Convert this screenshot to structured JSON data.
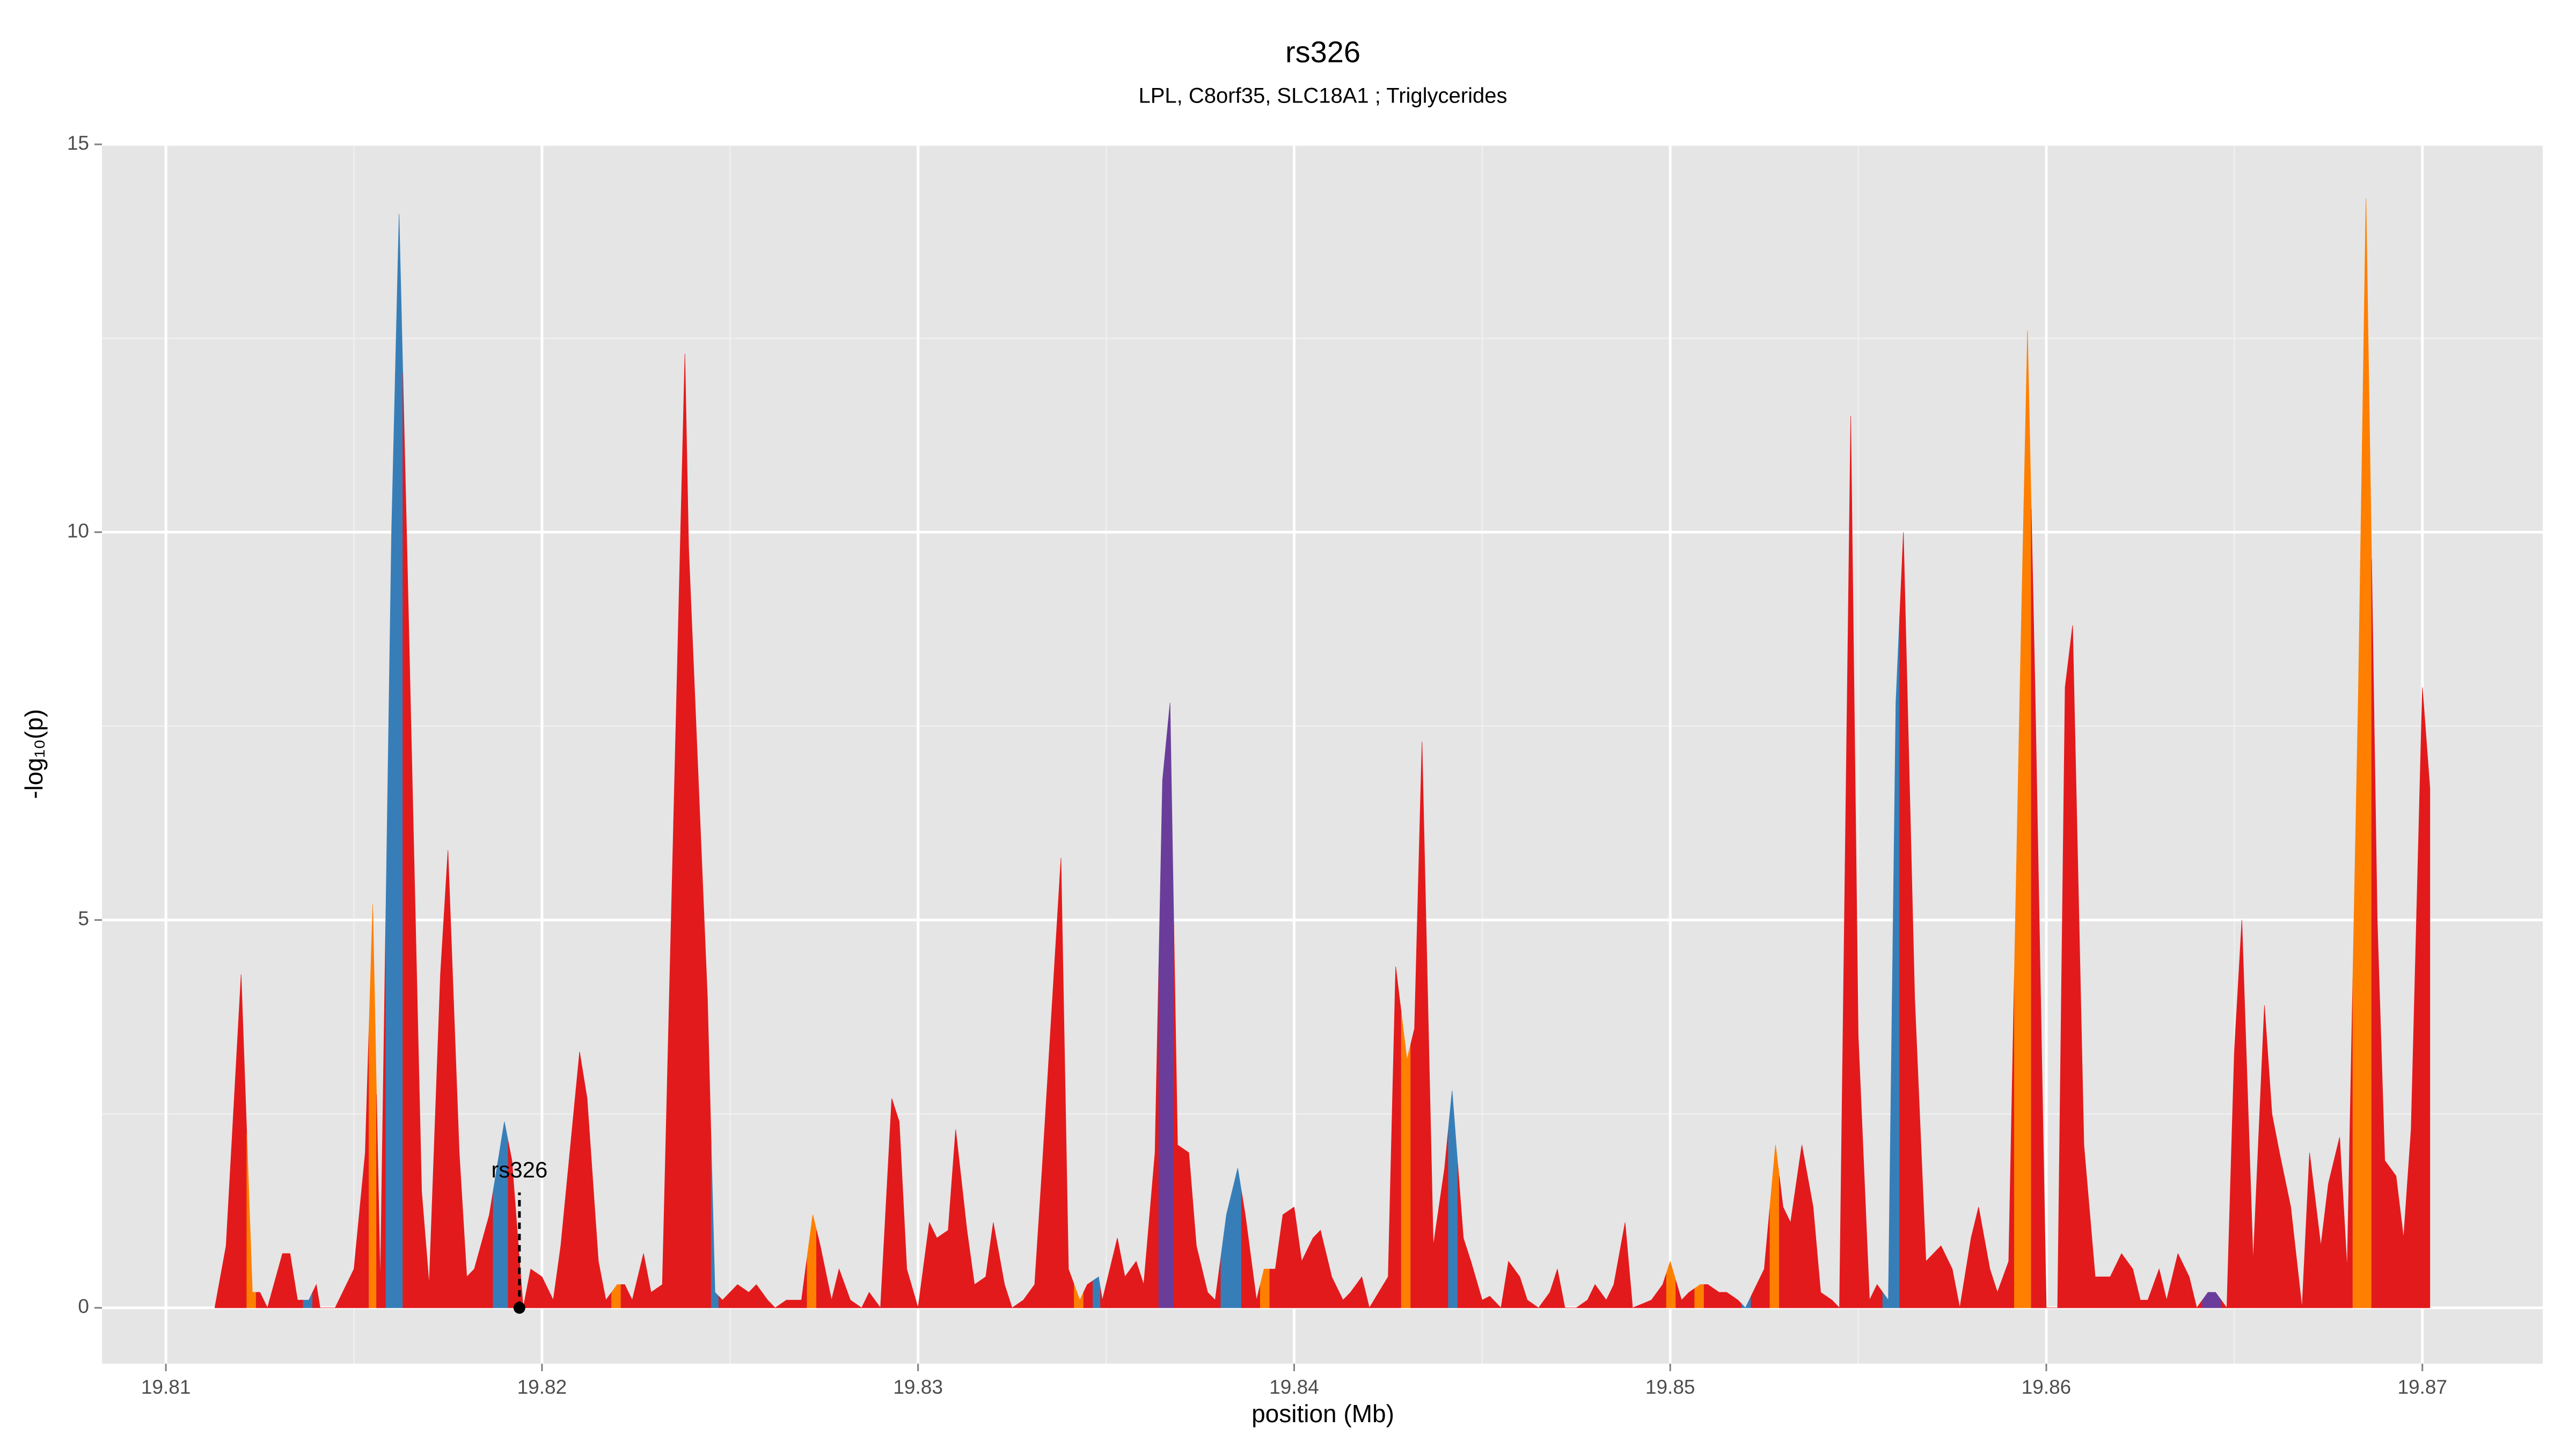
{
  "chart_data": {
    "type": "area",
    "title": "rs326",
    "subtitle": "LPL, C8orf35, SLC18A1 ; Triglycerides",
    "xlabel": "position (Mb)",
    "ylabel": "-log₁₀(p)",
    "xlim": [
      19.8083,
      19.8732
    ],
    "ylim": [
      -0.72,
      15
    ],
    "xticks": [
      19.81,
      19.82,
      19.83,
      19.84,
      19.85,
      19.86,
      19.87
    ],
    "yticks": [
      0,
      5,
      10,
      15
    ],
    "grid": true,
    "annotation": {
      "label": "rs326",
      "x": 19.8194,
      "y": 0
    },
    "x": [
      19.8113,
      19.8116,
      19.812,
      19.8123,
      19.8125,
      19.8127,
      19.8131,
      19.8133,
      19.8135,
      19.8138,
      19.814,
      19.8141,
      19.8145,
      19.815,
      19.8153,
      19.8155,
      19.8157,
      19.816,
      19.8162,
      19.8164,
      19.8168,
      19.817,
      19.8173,
      19.8175,
      19.8178,
      19.818,
      19.8182,
      19.8186,
      19.8188,
      19.819,
      19.8192,
      19.8195,
      19.8197,
      19.82,
      19.8203,
      19.8205,
      19.821,
      19.8212,
      19.8215,
      19.8217,
      19.822,
      19.8222,
      19.8224,
      19.8227,
      19.8229,
      19.8232,
      19.8238,
      19.8239,
      19.8244,
      19.8246,
      19.8248,
      19.8252,
      19.8255,
      19.8257,
      19.826,
      19.8262,
      19.8265,
      19.8269,
      19.8272,
      19.8274,
      19.8277,
      19.8279,
      19.8282,
      19.8285,
      19.8287,
      19.829,
      19.8293,
      19.8295,
      19.8297,
      19.83,
      19.8303,
      19.8305,
      19.8308,
      19.831,
      19.8313,
      19.8315,
      19.8318,
      19.832,
      19.8323,
      19.8325,
      19.8328,
      19.8331,
      19.8333,
      19.8338,
      19.834,
      19.8343,
      19.8345,
      19.8348,
      19.8349,
      19.8353,
      19.8355,
      19.8358,
      19.836,
      19.8363,
      19.8365,
      19.8367,
      19.8369,
      19.8372,
      19.8374,
      19.8377,
      19.8379,
      19.8382,
      19.8385,
      19.8387,
      19.839,
      19.8392,
      19.8395,
      19.8397,
      19.84,
      19.8402,
      19.8405,
      19.8407,
      19.841,
      19.8413,
      19.8415,
      19.8418,
      19.842,
      19.8425,
      19.8427,
      19.843,
      19.8432,
      19.8434,
      19.8437,
      19.844,
      19.8442,
      19.8445,
      19.8447,
      19.845,
      19.8452,
      19.8455,
      19.8457,
      19.846,
      19.8462,
      19.8465,
      19.8468,
      19.847,
      19.8472,
      19.8475,
      19.8478,
      19.848,
      19.8483,
      19.8485,
      19.8488,
      19.849,
      19.8495,
      19.8498,
      19.85,
      19.8503,
      19.8505,
      19.8508,
      19.851,
      19.8513,
      19.8515,
      19.8518,
      19.852,
      19.8523,
      19.8525,
      19.8528,
      19.853,
      19.8532,
      19.8535,
      19.8538,
      19.854,
      19.8543,
      19.8545,
      19.8548,
      19.855,
      19.8553,
      19.8555,
      19.8558,
      19.856,
      19.8562,
      19.8565,
      19.8568,
      19.857,
      19.8572,
      19.8575,
      19.8577,
      19.858,
      19.8582,
      19.8585,
      19.8587,
      19.859,
      19.8593,
      19.8595,
      19.8597,
      19.86,
      19.8603,
      19.8605,
      19.8607,
      19.861,
      19.8613,
      19.8615,
      19.8617,
      19.862,
      19.8623,
      19.8625,
      19.8627,
      19.863,
      19.8632,
      19.8635,
      19.8638,
      19.864,
      19.8643,
      19.8645,
      19.8648,
      19.865,
      19.8652,
      19.8655,
      19.8658,
      19.866,
      19.8662,
      19.8665,
      19.8668,
      19.867,
      19.8673,
      19.8675,
      19.8678,
      19.868,
      19.8683,
      19.8685,
      19.8688,
      19.869,
      19.8693,
      19.8695,
      19.8697,
      19.87,
      19.8702
    ],
    "values": [
      0,
      0.8,
      4.3,
      0.2,
      0.2,
      0,
      0.7,
      0.7,
      0.1,
      0.1,
      0.3,
      0,
      0,
      0.5,
      2,
      5.2,
      0.3,
      10,
      14.1,
      10,
      1.5,
      0.3,
      4.3,
      5.9,
      2,
      0.4,
      0.5,
      1.2,
      1.8,
      2.4,
      1.9,
      0,
      0.5,
      0.4,
      0.1,
      0.8,
      3.3,
      2.7,
      0.6,
      0.1,
      0.3,
      0.3,
      0.1,
      0.7,
      0.2,
      0.3,
      12.3,
      9.8,
      4,
      0.2,
      0.1,
      0.3,
      0.2,
      0.3,
      0.1,
      0,
      0.1,
      0.1,
      1.2,
      0.8,
      0.1,
      0.5,
      0.1,
      0,
      0.2,
      0,
      2.7,
      2.4,
      0.5,
      0,
      1.1,
      0.9,
      1,
      2.3,
      1,
      0.3,
      0.4,
      1.1,
      0.3,
      0,
      0.1,
      0.3,
      1.8,
      5.8,
      0.5,
      0.1,
      0.3,
      0.4,
      0.1,
      0.9,
      0.4,
      0.6,
      0.3,
      2,
      6.8,
      7.8,
      2.1,
      2,
      0.8,
      0.2,
      0.1,
      1.2,
      1.8,
      1.2,
      0.1,
      0.5,
      0.5,
      1.2,
      1.3,
      0.6,
      0.9,
      1,
      0.4,
      0.1,
      0.2,
      0.4,
      0,
      0.4,
      4.4,
      3.2,
      3.6,
      7.3,
      0.8,
      1.8,
      2.8,
      0.9,
      0.6,
      0.1,
      0.15,
      0,
      0.6,
      0.4,
      0.1,
      0,
      0.2,
      0.5,
      0,
      0,
      0.1,
      0.3,
      0.1,
      0.3,
      1.1,
      0,
      0.1,
      0.3,
      0.6,
      0.1,
      0.2,
      0.3,
      0.3,
      0.2,
      0.2,
      0.1,
      0,
      0.3,
      0.5,
      2.1,
      1.3,
      1.1,
      2.1,
      1.3,
      0.2,
      0.1,
      0,
      11.5,
      3.5,
      0.1,
      0.3,
      0.1,
      7.8,
      10,
      4,
      0.6,
      0.7,
      0.8,
      0.5,
      0,
      0.9,
      1.3,
      0.5,
      0.2,
      0.6,
      8,
      12.6,
      8,
      0,
      0,
      8,
      8.8,
      2.1,
      0.4,
      0.4,
      0.4,
      0.7,
      0.5,
      0.1,
      0.1,
      0.5,
      0.1,
      0.7,
      0.4,
      0,
      0.2,
      0.2,
      0,
      3.3,
      5,
      0.6,
      3.9,
      2.5,
      2,
      1.3,
      0,
      2,
      0.8,
      1.6,
      2.2,
      0.5,
      8,
      14.3,
      5,
      1.9,
      1.7,
      0.9,
      2.3,
      8,
      6.7
    ],
    "colors": [
      "#e31a1c",
      "#e31a1c",
      "#e31a1c",
      "#ff7f00",
      "#e31a1c",
      "#e31a1c",
      "#e31a1c",
      "#e31a1c",
      "#e31a1c",
      "#377eb8",
      "#e31a1c",
      "#e31a1c",
      "#e31a1c",
      "#e31a1c",
      "#e31a1c",
      "#ff7f00",
      "#e31a1c",
      "#377eb8",
      "#377eb8",
      "#e31a1c",
      "#e31a1c",
      "#e31a1c",
      "#e31a1c",
      "#e31a1c",
      "#e31a1c",
      "#e31a1c",
      "#e31a1c",
      "#e31a1c",
      "#377eb8",
      "#377eb8",
      "#e31a1c",
      "#e31a1c",
      "#e31a1c",
      "#e31a1c",
      "#e31a1c",
      "#e31a1c",
      "#e31a1c",
      "#e31a1c",
      "#e31a1c",
      "#e31a1c",
      "#ff7f00",
      "#e31a1c",
      "#e31a1c",
      "#e31a1c",
      "#e31a1c",
      "#e31a1c",
      "#e31a1c",
      "#e31a1c",
      "#e31a1c",
      "#377eb8",
      "#e31a1c",
      "#e31a1c",
      "#e31a1c",
      "#e31a1c",
      "#e31a1c",
      "#e31a1c",
      "#e31a1c",
      "#e31a1c",
      "#ff7f00",
      "#e31a1c",
      "#e31a1c",
      "#e31a1c",
      "#e31a1c",
      "#e31a1c",
      "#e31a1c",
      "#e31a1c",
      "#e31a1c",
      "#e31a1c",
      "#e31a1c",
      "#e31a1c",
      "#e31a1c",
      "#e31a1c",
      "#e31a1c",
      "#e31a1c",
      "#e31a1c",
      "#e31a1c",
      "#e31a1c",
      "#e31a1c",
      "#e31a1c",
      "#e31a1c",
      "#e31a1c",
      "#e31a1c",
      "#e31a1c",
      "#e31a1c",
      "#e31a1c",
      "#ff7f00",
      "#e31a1c",
      "#377eb8",
      "#e31a1c",
      "#e31a1c",
      "#e31a1c",
      "#e31a1c",
      "#e31a1c",
      "#e31a1c",
      "#6a3d9a",
      "#6a3d9a",
      "#e31a1c",
      "#e31a1c",
      "#e31a1c",
      "#e31a1c",
      "#e31a1c",
      "#377eb8",
      "#377eb8",
      "#e31a1c",
      "#e31a1c",
      "#ff7f00",
      "#e31a1c",
      "#e31a1c",
      "#e31a1c",
      "#e31a1c",
      "#e31a1c",
      "#e31a1c",
      "#e31a1c",
      "#e31a1c",
      "#e31a1c",
      "#e31a1c",
      "#e31a1c",
      "#e31a1c",
      "#e31a1c",
      "#ff7f00",
      "#e31a1c",
      "#e31a1c",
      "#e31a1c",
      "#e31a1c",
      "#377eb8",
      "#e31a1c",
      "#e31a1c",
      "#e31a1c",
      "#e31a1c",
      "#e31a1c",
      "#e31a1c",
      "#e31a1c",
      "#e31a1c",
      "#e31a1c",
      "#e31a1c",
      "#e31a1c",
      "#e31a1c",
      "#e31a1c",
      "#e31a1c",
      "#e31a1c",
      "#e31a1c",
      "#e31a1c",
      "#e31a1c",
      "#e31a1c",
      "#e31a1c",
      "#e31a1c",
      "#ff7f00",
      "#e31a1c",
      "#e31a1c",
      "#ff7f00",
      "#e31a1c",
      "#e31a1c",
      "#e31a1c",
      "#e31a1c",
      "#377eb8",
      "#e31a1c",
      "#e31a1c",
      "#ff7f00",
      "#e31a1c",
      "#e31a1c",
      "#e31a1c",
      "#e31a1c",
      "#e31a1c",
      "#e31a1c",
      "#e31a1c",
      "#e31a1c",
      "#e31a1c",
      "#e31a1c",
      "#e31a1c",
      "#377eb8",
      "#377eb8",
      "#e31a1c",
      "#e31a1c",
      "#e31a1c",
      "#e31a1c",
      "#e31a1c",
      "#e31a1c",
      "#e31a1c",
      "#e31a1c",
      "#e31a1c",
      "#e31a1c",
      "#e31a1c",
      "#e31a1c",
      "#ff7f00",
      "#ff7f00",
      "#e31a1c",
      "#e31a1c",
      "#e31a1c",
      "#e31a1c",
      "#e31a1c",
      "#e31a1c",
      "#e31a1c",
      "#e31a1c",
      "#e31a1c",
      "#e31a1c",
      "#e31a1c",
      "#e31a1c",
      "#e31a1c",
      "#e31a1c",
      "#e31a1c",
      "#e31a1c",
      "#e31a1c",
      "#e31a1c",
      "#6a3d9a",
      "#6a3d9a",
      "#e31a1c",
      "#e31a1c",
      "#e31a1c",
      "#e31a1c",
      "#e31a1c",
      "#e31a1c",
      "#e31a1c",
      "#e31a1c",
      "#e31a1c",
      "#e31a1c",
      "#e31a1c",
      "#e31a1c",
      "#e31a1c",
      "#e31a1c",
      "#ff7f00",
      "#ff7f00",
      "#e31a1c",
      "#e31a1c",
      "#e31a1c",
      "#e31a1c",
      "#e31a1c",
      "#e31a1c",
      "#e31a1c"
    ]
  }
}
